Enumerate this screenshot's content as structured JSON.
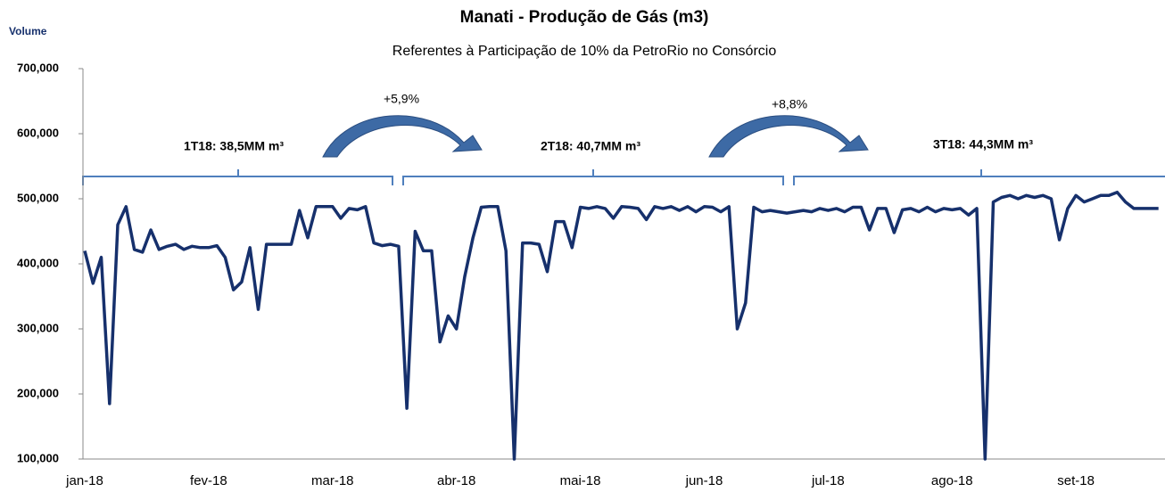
{
  "chart_data": {
    "type": "line",
    "title": "Manati - Produção de Gás (m3)",
    "subtitle": "Referentes à Participação de 10% da PetroRio no Consórcio",
    "y_label": "Volume",
    "color": "#16306c",
    "ylim": [
      100000,
      700000
    ],
    "yticks": [
      {
        "value": 100000,
        "label": "100,000"
      },
      {
        "value": 200000,
        "label": "200,000"
      },
      {
        "value": 300000,
        "label": "300,000"
      },
      {
        "value": 400000,
        "label": "400,000"
      },
      {
        "value": 500000,
        "label": "500,000"
      },
      {
        "value": 600000,
        "label": "600,000"
      },
      {
        "value": 700000,
        "label": "700,000"
      }
    ],
    "annotations": [
      "1T18: 38,5MM m³",
      "2T18: 40,7MM  m³",
      "3T18: 44,3MM  m³",
      "+5,9%",
      "+8,8%"
    ],
    "categories": [
      "jan-18",
      null,
      null,
      null,
      null,
      null,
      null,
      null,
      null,
      null,
      null,
      null,
      null,
      null,
      null,
      "fev-18",
      null,
      null,
      null,
      null,
      null,
      null,
      null,
      null,
      null,
      null,
      null,
      null,
      null,
      null,
      "mar-18",
      null,
      null,
      null,
      null,
      null,
      null,
      null,
      null,
      null,
      null,
      null,
      null,
      null,
      null,
      "abr-18",
      null,
      null,
      null,
      null,
      null,
      null,
      null,
      null,
      null,
      null,
      null,
      null,
      null,
      null,
      "mai-18",
      null,
      null,
      null,
      null,
      null,
      null,
      null,
      null,
      null,
      null,
      null,
      null,
      null,
      null,
      "jun-18",
      null,
      null,
      null,
      null,
      null,
      null,
      null,
      null,
      null,
      null,
      null,
      null,
      null,
      null,
      "jul-18",
      null,
      null,
      null,
      null,
      null,
      null,
      null,
      null,
      null,
      null,
      null,
      null,
      null,
      null,
      "ago-18",
      null,
      null,
      null,
      null,
      null,
      null,
      null,
      null,
      null,
      null,
      null,
      null,
      null,
      null,
      "set-18",
      null,
      null,
      null,
      null,
      null,
      null,
      null,
      null,
      null,
      null
    ],
    "values": [
      420000,
      370000,
      410000,
      185000,
      460000,
      488000,
      422000,
      418000,
      452000,
      422000,
      427000,
      430000,
      422000,
      427000,
      425000,
      425000,
      428000,
      410000,
      360000,
      372000,
      425000,
      330000,
      430000,
      430000,
      430000,
      430000,
      482000,
      440000,
      488000,
      488000,
      488000,
      470000,
      485000,
      483000,
      488000,
      432000,
      428000,
      430000,
      427000,
      178000,
      450000,
      420000,
      420000,
      280000,
      320000,
      300000,
      380000,
      440000,
      487000,
      488000,
      488000,
      420000,
      100000,
      432000,
      432000,
      430000,
      388000,
      465000,
      465000,
      425000,
      487000,
      485000,
      488000,
      485000,
      470000,
      488000,
      487000,
      485000,
      468000,
      488000,
      485000,
      488000,
      482000,
      488000,
      480000,
      488000,
      487000,
      480000,
      488000,
      300000,
      340000,
      487000,
      480000,
      482000,
      480000,
      478000,
      480000,
      482000,
      480000,
      485000,
      482000,
      485000,
      480000,
      487000,
      487000,
      452000,
      485000,
      485000,
      448000,
      483000,
      485000,
      480000,
      487000,
      480000,
      485000,
      483000,
      485000,
      475000,
      485000,
      100000,
      495000,
      502000,
      505000,
      500000,
      505000,
      502000,
      505000,
      500000,
      437000,
      485000,
      505000,
      495000,
      500000,
      505000,
      505000,
      510000,
      495000,
      485000,
      485000,
      485000,
      485000
    ]
  }
}
